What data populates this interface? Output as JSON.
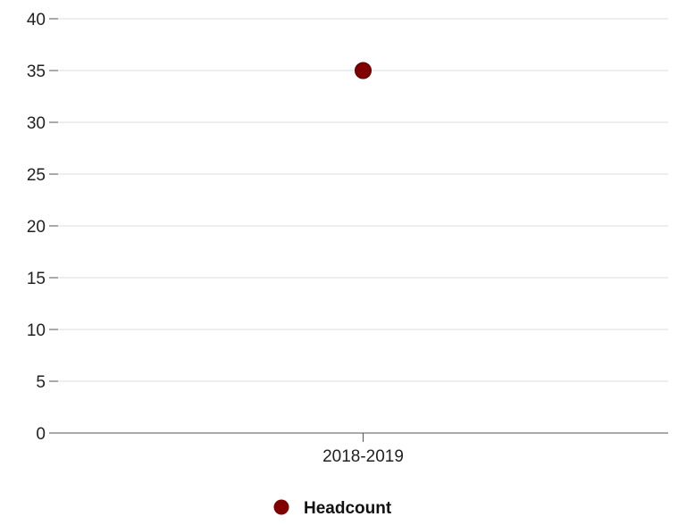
{
  "chart_data": {
    "type": "scatter",
    "title": "",
    "xlabel": "",
    "ylabel": "",
    "categories": [
      "2018-2019"
    ],
    "series": [
      {
        "name": "Headcount",
        "values": [
          35
        ],
        "color": "#800000"
      }
    ],
    "ylim": [
      0,
      40
    ],
    "yticks": [
      0,
      5,
      10,
      15,
      20,
      25,
      30,
      35,
      40
    ],
    "grid": true,
    "legend_position": "bottom-center"
  }
}
